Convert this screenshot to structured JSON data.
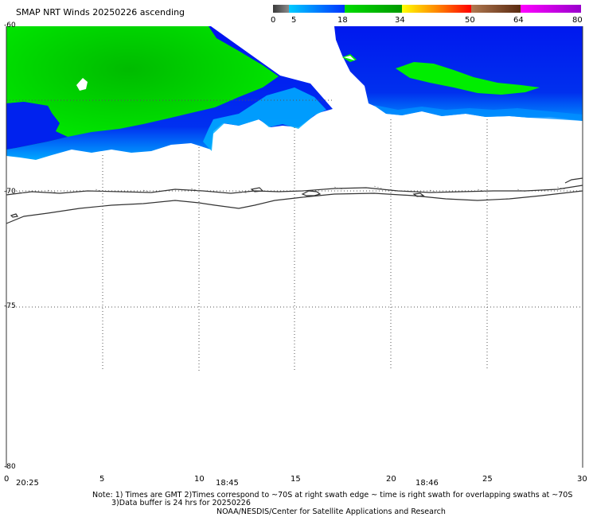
{
  "title": "SMAP NRT Winds 20250226 ascending",
  "colorbar": {
    "ticks": [
      "0",
      "5",
      "18",
      "34",
      "50",
      "64",
      "80"
    ],
    "segments": [
      {
        "from": 0,
        "to": 5,
        "color": "#4a4a4a"
      },
      {
        "from": 5,
        "to": 18,
        "color": "#0060ff"
      },
      {
        "from": 18,
        "to": 34,
        "color": "#00d000"
      },
      {
        "from": 34,
        "to": 50,
        "color": "#ff2020"
      },
      {
        "from": 50,
        "to": 64,
        "color": "#7a3a10"
      },
      {
        "from": 64,
        "to": 80,
        "color": "#cc00cc"
      }
    ]
  },
  "map": {
    "lat_range": [
      -80,
      -60
    ],
    "lon_range": [
      0,
      30
    ],
    "lat_labels": [
      "-60",
      "-70",
      "-75",
      "-80"
    ],
    "lon_labels": [
      "0",
      "5",
      "10",
      "15",
      "20",
      "25",
      "30"
    ],
    "time_labels": [
      "20:25",
      "18:45",
      "18:46"
    ],
    "colors": {
      "strong": "#00dd00",
      "moderate": "#0022ee",
      "light": "#00bbff",
      "coast": "#333333"
    }
  },
  "notes": {
    "line1": "Note: 1) Times are GMT 2)Times correspond to ~70S at right swath edge ~ time is right swath for overlapping swaths at ~70S",
    "line2": "3)Data buffer is 24 hrs for 20250226",
    "line3": "NOAA/NESDIS/Center for Satellite Applications and Research"
  }
}
